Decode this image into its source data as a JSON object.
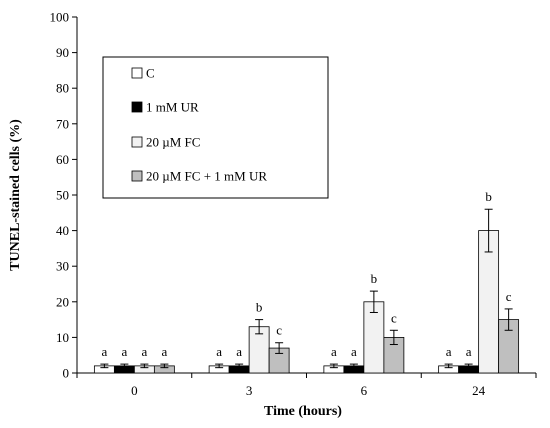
{
  "chart_data": {
    "type": "bar",
    "title": "",
    "xlabel": "Time (hours)",
    "ylabel": "TUNEL-stained cells (%)",
    "ylim": [
      0,
      100
    ],
    "yticks": [
      0,
      10,
      20,
      30,
      40,
      50,
      60,
      70,
      80,
      90,
      100
    ],
    "categories": [
      "0",
      "3",
      "6",
      "24"
    ],
    "legend_position": "top-left",
    "grid": false,
    "series": [
      {
        "name": "C",
        "color": "#ffffff",
        "values": [
          2,
          2,
          2,
          2
        ],
        "errors": [
          0.5,
          0.5,
          0.5,
          0.5
        ],
        "letters": [
          "a",
          "a",
          "a",
          "a"
        ]
      },
      {
        "name": "1 mM UR",
        "color": "#000000",
        "values": [
          2,
          2,
          2,
          2
        ],
        "errors": [
          0.5,
          0.5,
          0.5,
          0.5
        ],
        "letters": [
          "a",
          "a",
          "a",
          "a"
        ]
      },
      {
        "name": "20 µM FC",
        "color": "#f2f2f2",
        "values": [
          2,
          13,
          20,
          40
        ],
        "errors": [
          0.5,
          2,
          3,
          6
        ],
        "letters": [
          "a",
          "b",
          "b",
          "b"
        ]
      },
      {
        "name": "20 µM FC + 1 mM UR",
        "color": "#bfbfbf",
        "values": [
          2,
          7,
          10,
          15
        ],
        "errors": [
          0.5,
          1.5,
          2,
          3
        ],
        "letters": [
          "a",
          "c",
          "c",
          "c"
        ]
      }
    ]
  }
}
